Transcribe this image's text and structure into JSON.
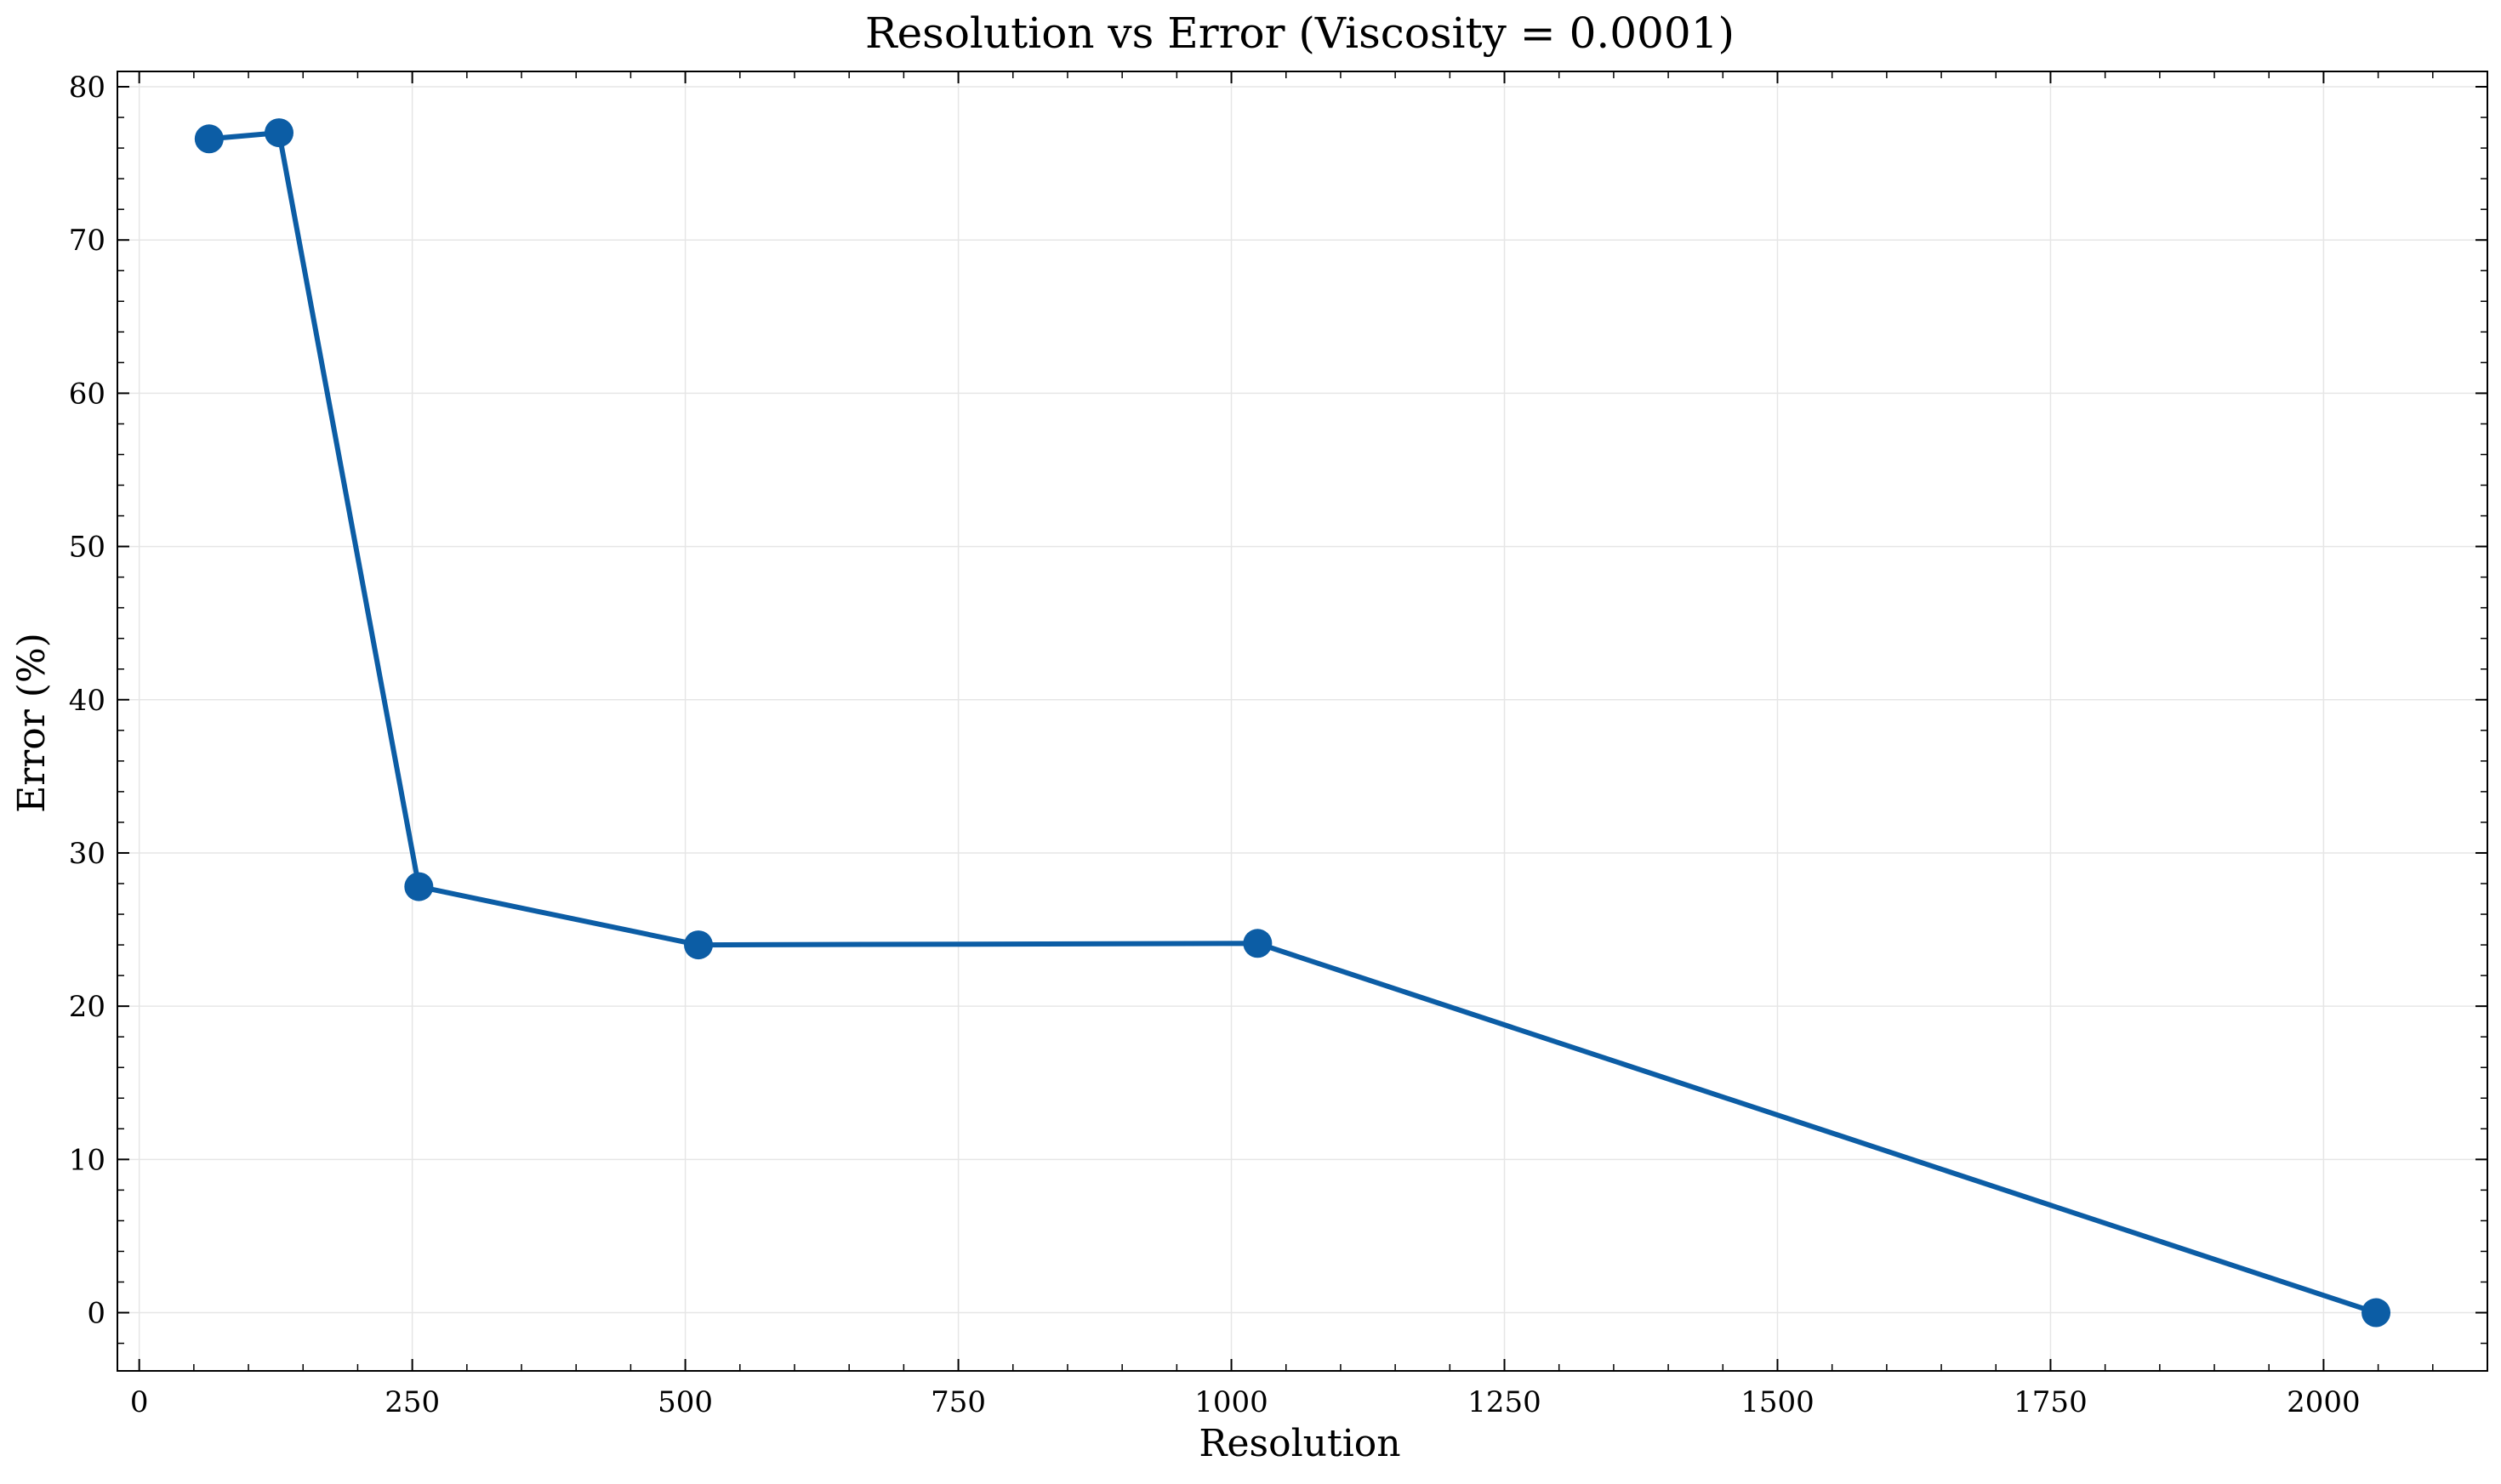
{
  "chart_data": {
    "type": "line",
    "title": "Resolution vs Error (Viscosity = 0.0001)",
    "xlabel": "Resolution",
    "ylabel": "Error (%)",
    "xlim": [
      -20,
      2150
    ],
    "ylim": [
      -3.8,
      81
    ],
    "x_ticks": [
      0,
      250,
      500,
      750,
      1000,
      1250,
      1500,
      1750,
      2000
    ],
    "x_tick_labels": [
      "0",
      "250",
      "500",
      "750",
      "1000",
      "1250",
      "1500",
      "1750",
      "2000"
    ],
    "y_ticks": [
      0,
      10,
      20,
      30,
      40,
      50,
      60,
      70,
      80
    ],
    "y_tick_labels": [
      "0",
      "10",
      "20",
      "30",
      "40",
      "50",
      "60",
      "70",
      "80"
    ],
    "grid": true,
    "series": [
      {
        "color": "#0C5DA5",
        "x": [
          64,
          128,
          256,
          512,
          1024,
          2048
        ],
        "y": [
          76.6,
          77.0,
          27.8,
          24.0,
          24.1,
          0.0
        ]
      }
    ]
  }
}
